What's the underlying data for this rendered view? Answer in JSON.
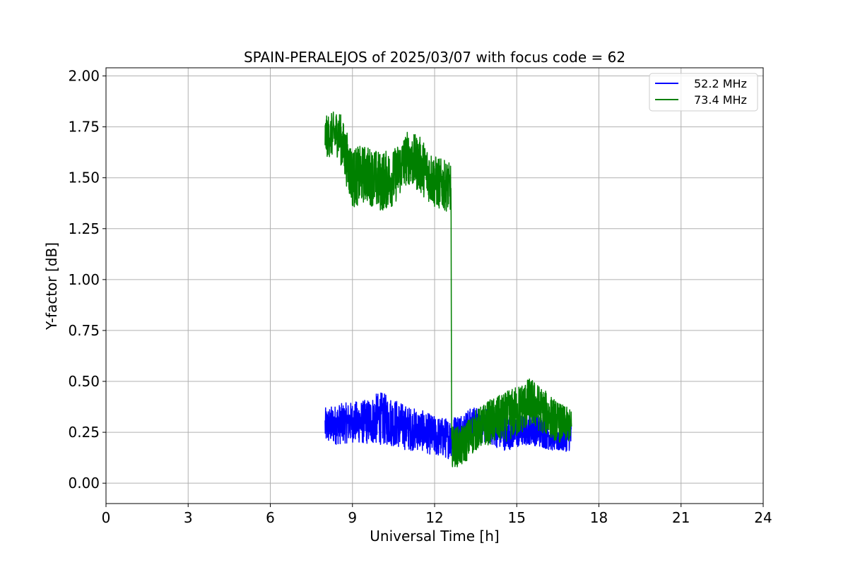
{
  "chart_data": {
    "type": "line",
    "title": "SPAIN-PERALEJOS of 2025/03/07 with focus code = 62",
    "xlabel": "Universal Time [h]",
    "ylabel": "Y-factor [dB]",
    "xlim": [
      0,
      24
    ],
    "ylim": [
      -0.1,
      2.04
    ],
    "xticks": [
      0,
      3,
      6,
      9,
      12,
      15,
      18,
      21,
      24
    ],
    "xtick_labels": [
      "0",
      "3",
      "6",
      "9",
      "12",
      "15",
      "18",
      "21",
      "24"
    ],
    "yticks": [
      0.0,
      0.25,
      0.5,
      0.75,
      1.0,
      1.25,
      1.5,
      1.75,
      2.0
    ],
    "ytick_labels": [
      "0.00",
      "0.25",
      "0.50",
      "0.75",
      "1.00",
      "1.25",
      "1.50",
      "1.75",
      "2.00"
    ],
    "grid": true,
    "legend_position": "top-right",
    "series": [
      {
        "name": "52.2 MHz",
        "color": "#0000ff",
        "x": [
          8.0,
          8.5,
          9.0,
          9.5,
          10.0,
          10.5,
          11.0,
          11.5,
          12.0,
          12.5,
          13.0,
          13.5,
          14.0,
          14.5,
          15.0,
          15.5,
          16.0,
          16.5,
          17.0
        ],
        "y": [
          0.28,
          0.29,
          0.3,
          0.3,
          0.32,
          0.3,
          0.27,
          0.26,
          0.23,
          0.22,
          0.26,
          0.29,
          0.28,
          0.25,
          0.25,
          0.27,
          0.25,
          0.22,
          0.23
        ],
        "spread": [
          0.09,
          0.1,
          0.1,
          0.11,
          0.13,
          0.12,
          0.11,
          0.1,
          0.1,
          0.1,
          0.09,
          0.09,
          0.09,
          0.09,
          0.08,
          0.08,
          0.08,
          0.07,
          0.07
        ]
      },
      {
        "name": "73.4 MHz",
        "color": "#008000",
        "x": [
          8.0,
          8.5,
          9.0,
          9.5,
          10.0,
          10.5,
          11.0,
          11.5,
          12.0,
          12.6,
          12.62,
          13.0,
          13.5,
          14.0,
          14.5,
          15.0,
          15.5,
          16.0,
          16.5,
          17.0
        ],
        "y": [
          1.7,
          1.72,
          1.5,
          1.52,
          1.48,
          1.5,
          1.6,
          1.56,
          1.48,
          1.45,
          0.18,
          0.18,
          0.26,
          0.3,
          0.32,
          0.35,
          0.4,
          0.35,
          0.3,
          0.28
        ],
        "spread": [
          0.1,
          0.12,
          0.15,
          0.14,
          0.15,
          0.14,
          0.13,
          0.14,
          0.13,
          0.12,
          0.1,
          0.1,
          0.1,
          0.11,
          0.12,
          0.13,
          0.12,
          0.11,
          0.1,
          0.08
        ]
      }
    ]
  }
}
